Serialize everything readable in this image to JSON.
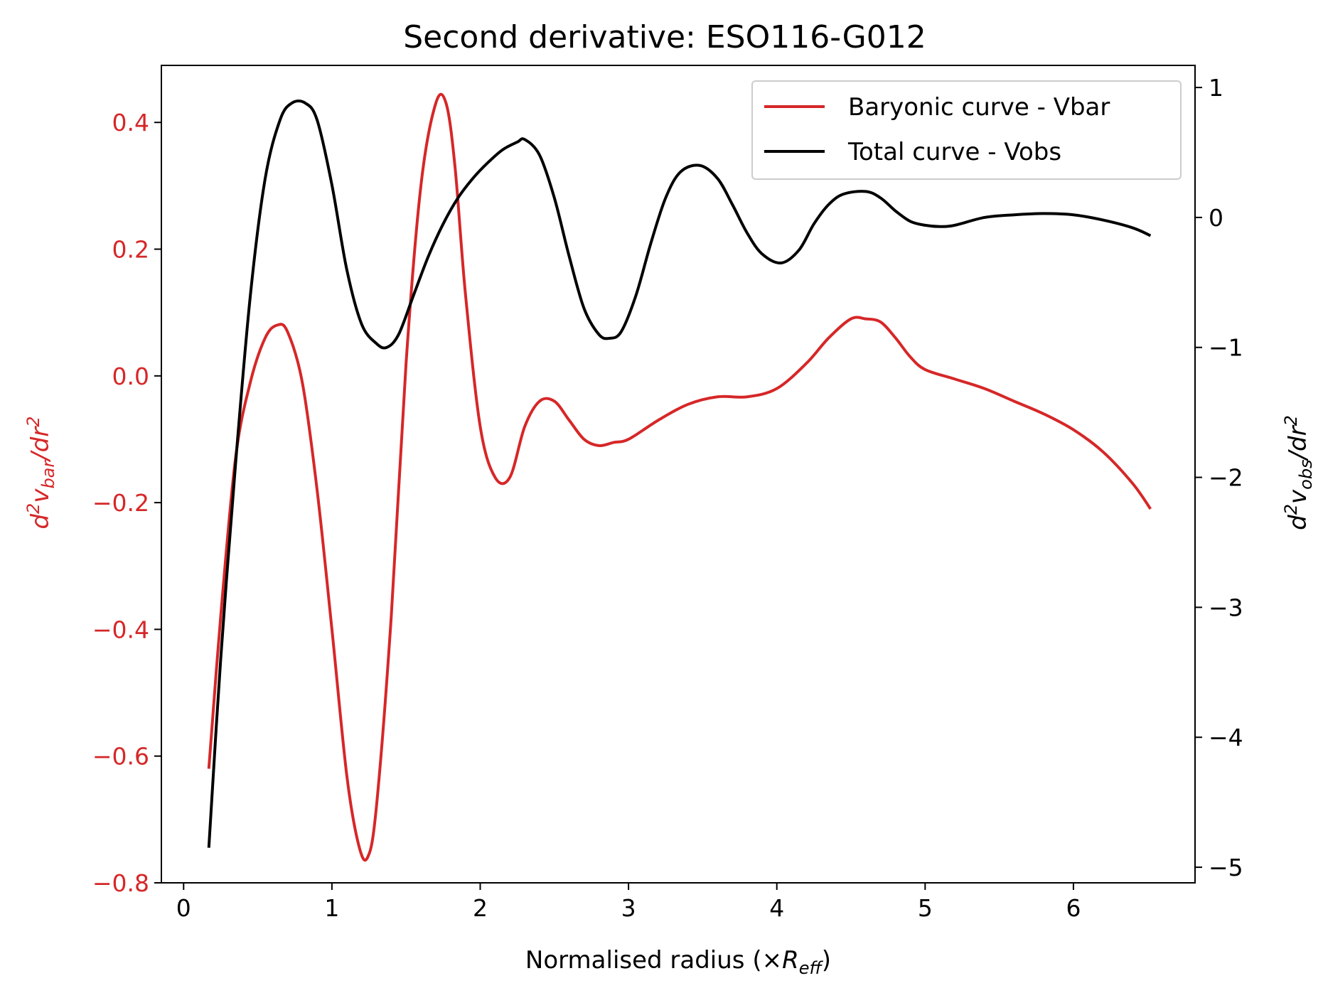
{
  "chart_data": {
    "type": "line",
    "title": "Second derivative: ESO116-G012",
    "xlabel": {
      "main": "Normalised radius (×",
      "var": "R",
      "sub": "eff",
      "close": ")"
    },
    "ylabel_left": {
      "pre": "d",
      "sup": "2",
      "v": "v",
      "sub": "bar",
      "post": "/dr",
      "sup2": "2"
    },
    "ylabel_right": {
      "pre": "d",
      "sup": "2",
      "v": "v",
      "sub": "obs",
      "post": "/dr",
      "sup2": "2"
    },
    "xlim": [
      -0.15,
      6.82
    ],
    "ylim_left": [
      -0.8,
      0.49
    ],
    "ylim_right": [
      -5.12,
      1.17
    ],
    "xticks": [
      0,
      1,
      2,
      3,
      4,
      5,
      6
    ],
    "yticks_left": [
      0.4,
      0.2,
      0.0,
      -0.2,
      -0.4,
      -0.6,
      -0.8
    ],
    "yticks_left_labels": [
      "0.4",
      "0.2",
      "0.0",
      "−0.2",
      "−0.4",
      "−0.6",
      "−0.8"
    ],
    "yticks_right": [
      1,
      0,
      -1,
      -2,
      -3,
      -4,
      -5
    ],
    "yticks_right_labels": [
      "1",
      "0",
      "−1",
      "−2",
      "−3",
      "−4",
      "−5"
    ],
    "legend": {
      "placement": "upper-right"
    },
    "series": [
      {
        "name": "Baryonic curve - Vbar",
        "axis": "left",
        "color": "#d62728",
        "x": [
          0.17,
          0.25,
          0.35,
          0.45,
          0.55,
          0.63,
          0.7,
          0.8,
          0.9,
          1.0,
          1.1,
          1.18,
          1.24,
          1.3,
          1.4,
          1.5,
          1.6,
          1.7,
          1.77,
          1.83,
          1.9,
          2.0,
          2.1,
          2.2,
          2.3,
          2.4,
          2.5,
          2.6,
          2.7,
          2.8,
          2.9,
          3.0,
          3.2,
          3.4,
          3.6,
          3.8,
          4.0,
          4.2,
          4.35,
          4.5,
          4.6,
          4.7,
          4.8,
          4.9,
          5.0,
          5.2,
          5.4,
          5.6,
          5.8,
          6.0,
          6.2,
          6.4,
          6.52
        ],
        "y": [
          -0.62,
          -0.38,
          -0.13,
          -0.01,
          0.06,
          0.08,
          0.07,
          -0.01,
          -0.18,
          -0.4,
          -0.63,
          -0.74,
          -0.76,
          -0.68,
          -0.38,
          0.02,
          0.3,
          0.43,
          0.43,
          0.33,
          0.13,
          -0.08,
          -0.16,
          -0.16,
          -0.08,
          -0.04,
          -0.04,
          -0.07,
          -0.1,
          -0.11,
          -0.105,
          -0.1,
          -0.07,
          -0.045,
          -0.033,
          -0.033,
          -0.02,
          0.02,
          0.06,
          0.09,
          0.09,
          0.085,
          0.06,
          0.03,
          0.01,
          -0.005,
          -0.02,
          -0.04,
          -0.06,
          -0.085,
          -0.12,
          -0.17,
          -0.21
        ]
      },
      {
        "name": "Total curve - Vobs",
        "axis": "right",
        "color": "#000000",
        "x": [
          0.17,
          0.25,
          0.35,
          0.45,
          0.55,
          0.65,
          0.73,
          0.82,
          0.9,
          1.0,
          1.1,
          1.2,
          1.3,
          1.37,
          1.45,
          1.55,
          1.65,
          1.75,
          1.85,
          1.95,
          2.05,
          2.15,
          2.25,
          2.3,
          2.4,
          2.5,
          2.6,
          2.7,
          2.8,
          2.87,
          2.95,
          3.05,
          3.15,
          3.25,
          3.35,
          3.48,
          3.6,
          3.7,
          3.8,
          3.9,
          4.03,
          4.15,
          4.25,
          4.35,
          4.45,
          4.6,
          4.7,
          4.8,
          4.9,
          5.0,
          5.1,
          5.2,
          5.4,
          5.6,
          5.8,
          6.0,
          6.2,
          6.4,
          6.52
        ],
        "y": [
          -4.85,
          -3.4,
          -1.9,
          -0.6,
          0.3,
          0.75,
          0.88,
          0.88,
          0.75,
          0.25,
          -0.4,
          -0.82,
          -0.97,
          -1.0,
          -0.9,
          -0.6,
          -0.3,
          -0.05,
          0.15,
          0.3,
          0.42,
          0.52,
          0.58,
          0.6,
          0.48,
          0.15,
          -0.3,
          -0.7,
          -0.9,
          -0.93,
          -0.88,
          -0.6,
          -0.2,
          0.15,
          0.35,
          0.4,
          0.3,
          0.1,
          -0.12,
          -0.28,
          -0.35,
          -0.25,
          -0.05,
          0.1,
          0.18,
          0.2,
          0.15,
          0.05,
          -0.03,
          -0.06,
          -0.07,
          -0.06,
          0.0,
          0.02,
          0.03,
          0.02,
          -0.02,
          -0.08,
          -0.14
        ]
      }
    ]
  }
}
